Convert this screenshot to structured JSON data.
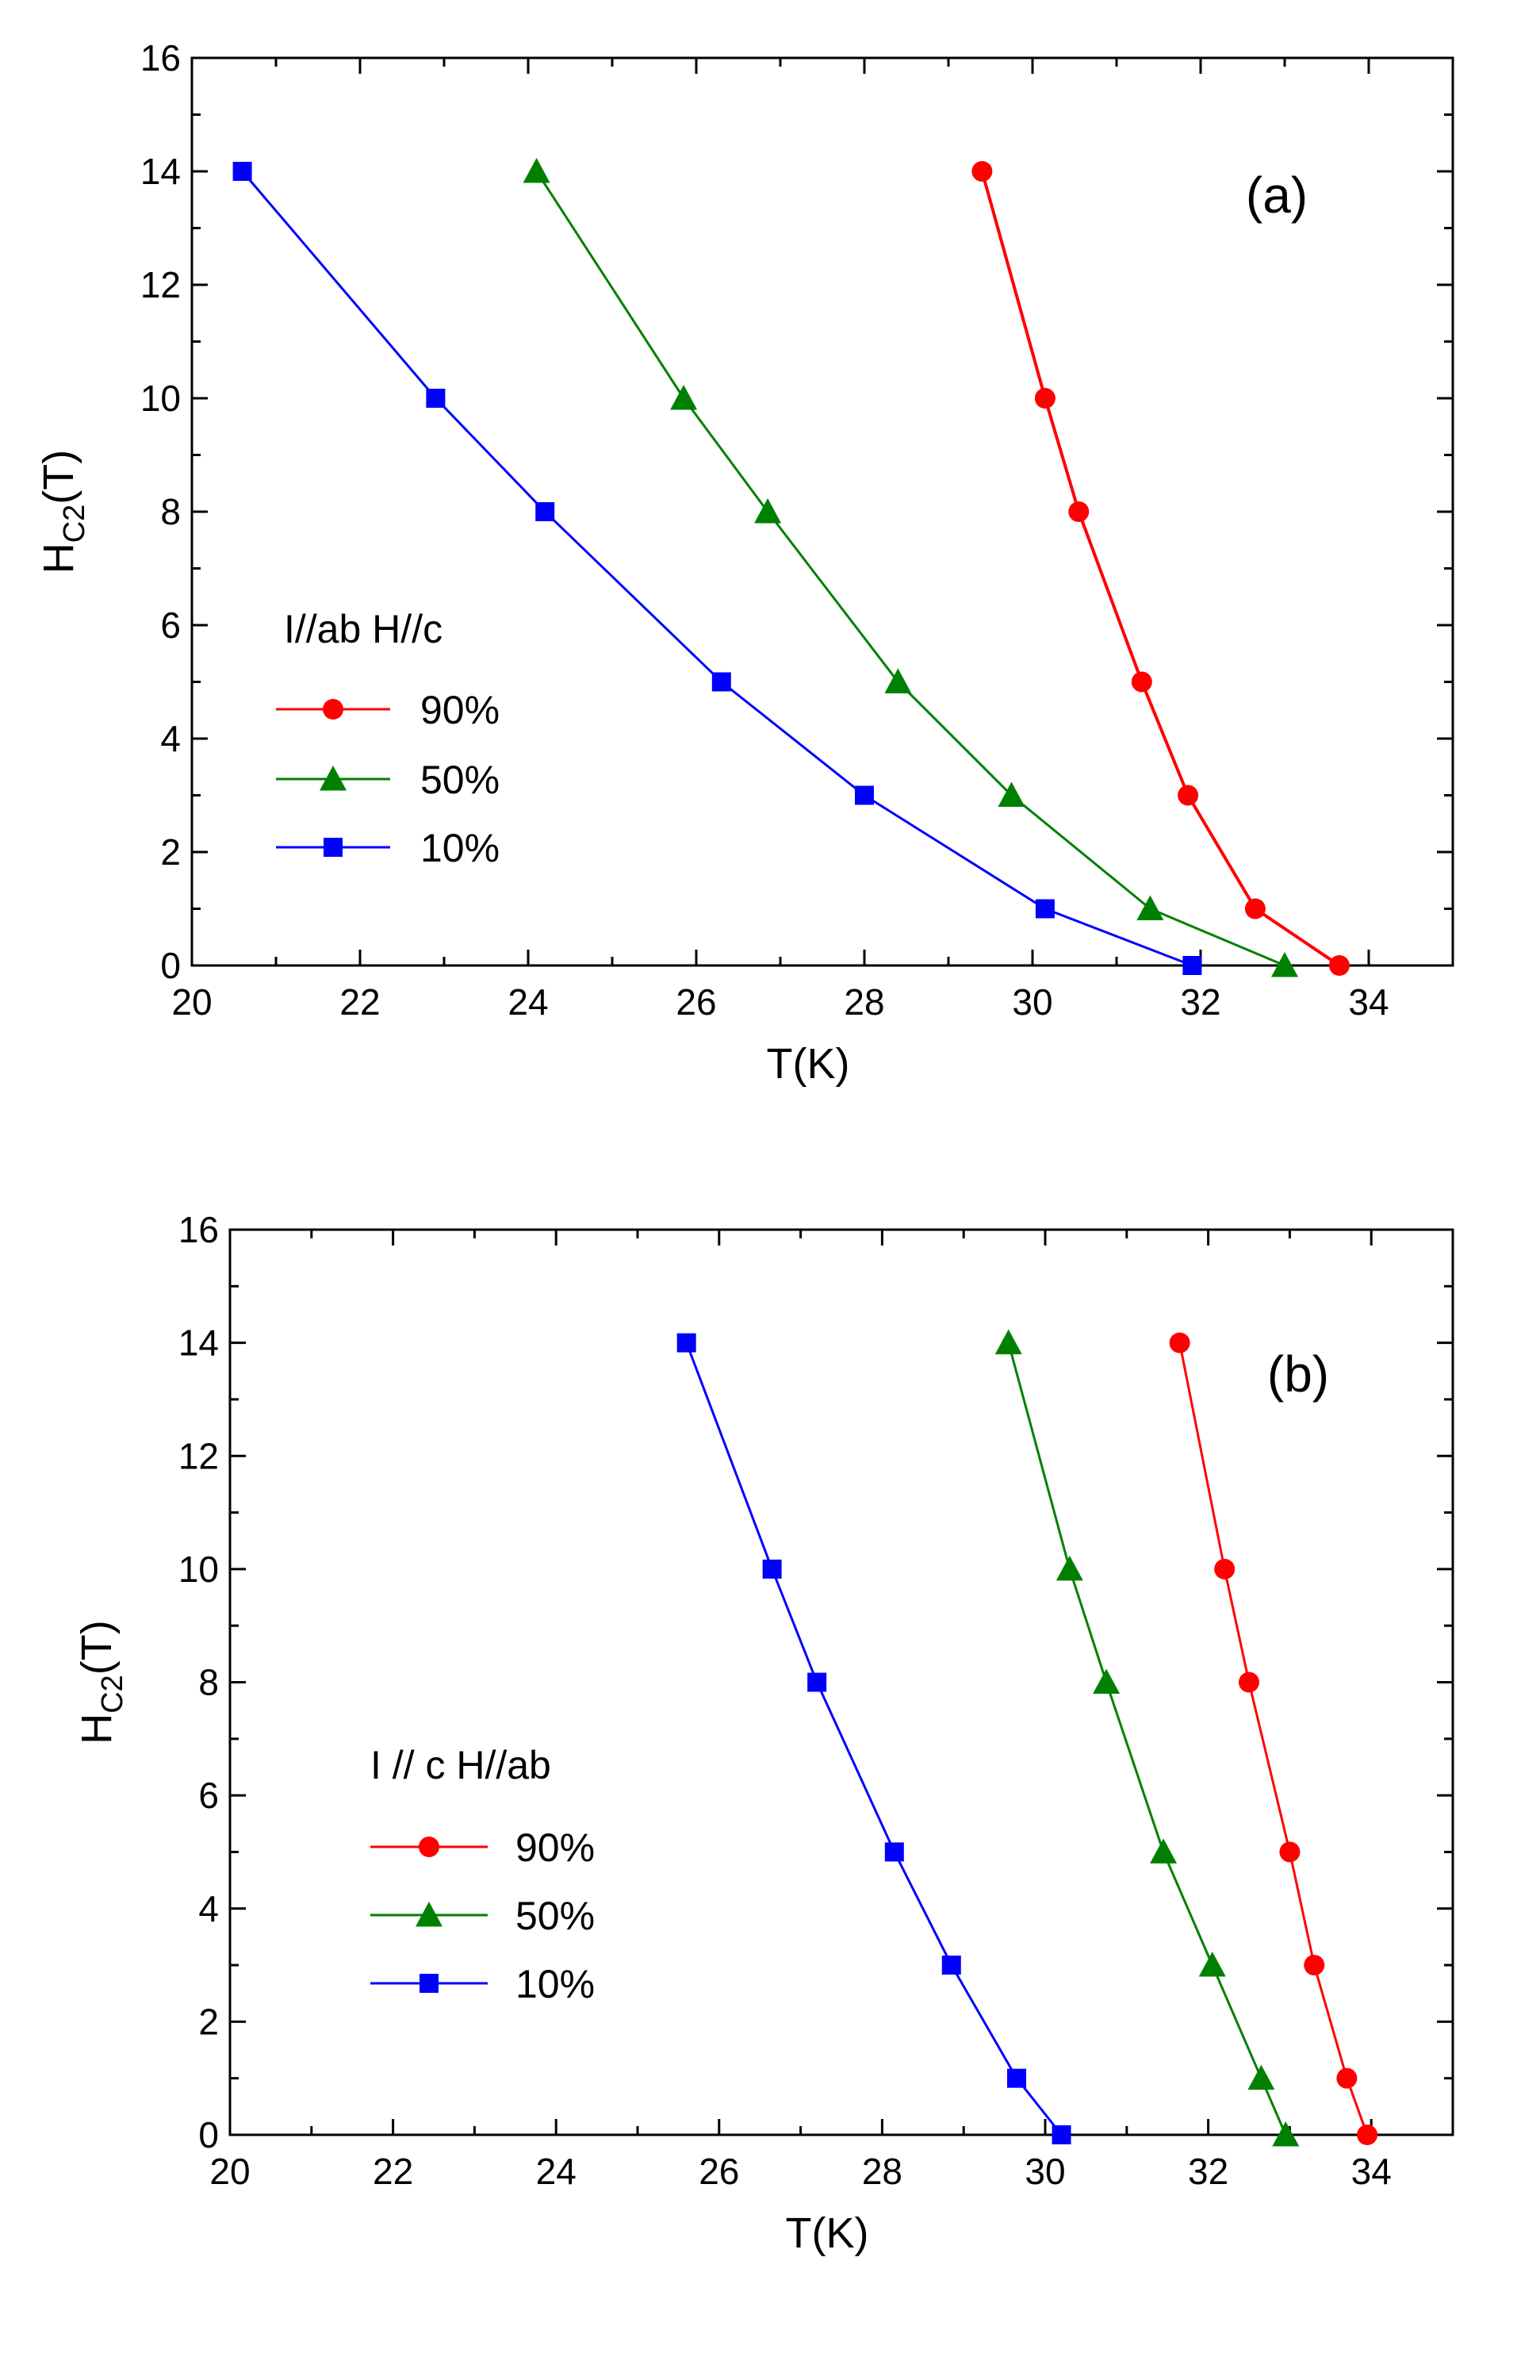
{
  "chart_data": [
    {
      "type": "line",
      "panel_label": "(a)",
      "xlabel": "T(K)",
      "ylabel": {
        "main": "H",
        "sub": "C2",
        "suffix": "(T)"
      },
      "xlim": [
        20,
        35
      ],
      "ylim": [
        0,
        16
      ],
      "xticks": [
        20,
        22,
        24,
        26,
        28,
        30,
        32,
        34
      ],
      "yticks": [
        0,
        2,
        4,
        6,
        8,
        10,
        12,
        14,
        16
      ],
      "grid": false,
      "legend": {
        "title": "I//ab H//c",
        "placement": "middle-left"
      },
      "series": [
        {
          "name": "90%",
          "marker": "circle",
          "color": "#ff0000",
          "x": [
            29.4,
            30.15,
            30.55,
            31.3,
            31.85,
            32.65,
            33.65
          ],
          "y": [
            14,
            10,
            8,
            5,
            3,
            1,
            0
          ]
        },
        {
          "name": "50%",
          "marker": "triangle",
          "color": "#008000",
          "x": [
            24.1,
            25.85,
            26.85,
            28.4,
            29.75,
            31.4,
            33.0
          ],
          "y": [
            14,
            10,
            8,
            5,
            3,
            1,
            0
          ]
        },
        {
          "name": "10%",
          "marker": "square",
          "color": "#0000ff",
          "x": [
            20.6,
            22.9,
            24.2,
            26.3,
            28.0,
            30.15,
            31.9
          ],
          "y": [
            14,
            10,
            8,
            5,
            3,
            1,
            0
          ]
        }
      ]
    },
    {
      "type": "line",
      "panel_label": "(b)",
      "xlabel": "T(K)",
      "ylabel": {
        "main": "H",
        "sub": "C2",
        "suffix": "(T)"
      },
      "xlim": [
        20,
        35
      ],
      "ylim": [
        0,
        16
      ],
      "xticks": [
        20,
        22,
        24,
        26,
        28,
        30,
        32,
        34
      ],
      "yticks": [
        0,
        2,
        4,
        6,
        8,
        10,
        12,
        14,
        16
      ],
      "grid": false,
      "legend": {
        "title": "I // c  H//ab",
        "placement": "bottom-left"
      },
      "series": [
        {
          "name": "90%",
          "marker": "circle",
          "color": "#ff0000",
          "x": [
            31.65,
            32.2,
            32.5,
            33.0,
            33.3,
            33.7,
            33.95
          ],
          "y": [
            14,
            10,
            8,
            5,
            3,
            1,
            0
          ]
        },
        {
          "name": "50%",
          "marker": "triangle",
          "color": "#008000",
          "x": [
            29.55,
            30.3,
            30.75,
            31.45,
            32.05,
            32.65,
            32.95
          ],
          "y": [
            14,
            10,
            8,
            5,
            3,
            1,
            0
          ]
        },
        {
          "name": "10%",
          "marker": "square",
          "color": "#0000ff",
          "x": [
            25.6,
            26.65,
            27.2,
            28.15,
            28.85,
            29.65,
            30.2
          ],
          "y": [
            14,
            10,
            8,
            5,
            3,
            1,
            0
          ]
        }
      ]
    }
  ]
}
